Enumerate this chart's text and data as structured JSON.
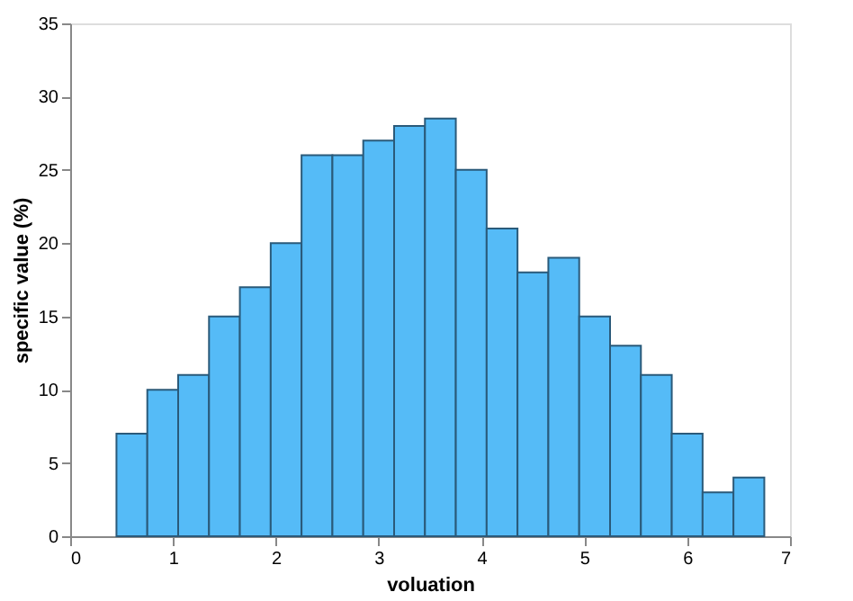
{
  "chart_data": {
    "type": "histogram",
    "xlabel": "voluation",
    "ylabel": "specific value (%)",
    "bins": [
      0.45,
      0.75,
      1.05,
      1.35,
      1.65,
      1.95,
      2.25,
      2.55,
      2.85,
      3.15,
      3.45,
      3.75,
      4.05,
      4.35,
      4.65,
      4.95,
      5.25,
      5.55,
      5.85,
      6.15,
      6.45,
      6.75
    ],
    "values": [
      7,
      10,
      11,
      15,
      17,
      20,
      26,
      26,
      27,
      28,
      28.5,
      25,
      21,
      18,
      19,
      15,
      13,
      11,
      7,
      3,
      4
    ],
    "color": "#55bbf7",
    "xlim": [
      0,
      7
    ],
    "xticks": [
      0,
      1,
      2,
      3,
      4,
      5,
      6,
      7
    ],
    "ylim": [
      0,
      35
    ],
    "yticks": [
      0,
      5,
      10,
      15,
      20,
      25,
      30,
      35
    ],
    "grid": false
  }
}
